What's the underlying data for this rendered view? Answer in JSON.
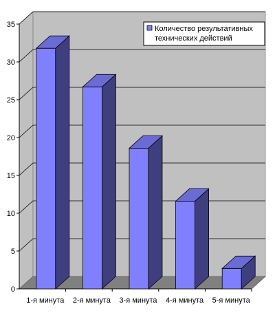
{
  "chart_data": {
    "type": "bar",
    "style": "3d-column",
    "categories": [
      "1-я минута",
      "2-я минута",
      "3-я минута",
      "4-я минута",
      "5-я минута"
    ],
    "series": [
      {
        "name": "Количество результативных технических действий",
        "values": [
          31.8,
          26.7,
          18.6,
          11.6,
          2.7
        ]
      }
    ],
    "ylim": [
      0,
      35
    ],
    "yticks": [
      0,
      5,
      10,
      15,
      20,
      25,
      30,
      35
    ],
    "grid": true,
    "legend_position": "top-right",
    "legend_lines": [
      "Количество результативных",
      "технических действий"
    ],
    "colors": {
      "bar_front": "#8080ff",
      "bar_side": "#3f3f80",
      "bar_top": "#6b6bd6",
      "wall": "#c0c0c0",
      "floor": "#808080",
      "gridline": "#000000",
      "legend_bg": "#ffffff"
    }
  }
}
